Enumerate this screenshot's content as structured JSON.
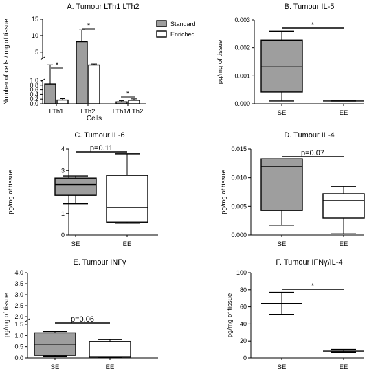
{
  "colors": {
    "standard": "#9e9e9e",
    "enriched": "#ffffff",
    "box_se": "#9e9e9e",
    "box_ee": "#ffffff",
    "ink": "#000000"
  },
  "chart_data": [
    {
      "id": "A",
      "type": "bar",
      "title": "A. Tumour LTh1 LTh2",
      "xlabel": "Cells",
      "ylabel": "Number of cells / mg of tissue",
      "categories": [
        "LTh1",
        "LTh2",
        "LTh1/LTh2"
      ],
      "series": [
        {
          "name": "Standard",
          "values": [
            0.85,
            8.2,
            0.08
          ],
          "errors": [
            0.3,
            3.6,
            0.05
          ]
        },
        {
          "name": "Enriched",
          "values": [
            0.16,
            1.1,
            0.15
          ],
          "errors": [
            0.06,
            0.3,
            0.06
          ]
        }
      ],
      "broken_axis": true,
      "ylim_lower": [
        0,
        1.0
      ],
      "ylim_upper": [
        1.0,
        15
      ],
      "yticks_lower": [
        "0.0",
        "0.2",
        "0.4",
        "0.6",
        "0.8",
        "1.0"
      ],
      "yticks_upper": [
        "5",
        "10",
        "15"
      ],
      "annotations": [
        "*",
        "*",
        "*"
      ],
      "legend_position": "top-right"
    },
    {
      "id": "B",
      "type": "box",
      "title": "B. Tumour IL-5",
      "ylabel": "pg/mg of tissue",
      "categories": [
        "SE",
        "EE"
      ],
      "ylim": [
        0,
        0.003
      ],
      "yticks": [
        "0.000",
        "0.001",
        "0.002",
        "0.003"
      ],
      "boxes": [
        {
          "min": 0.0001,
          "q1": 0.00042,
          "median": 0.00132,
          "q3": 0.00228,
          "max": 0.0026
        },
        {
          "min": 0.0001,
          "q1": 0.0001,
          "median": 0.0001,
          "q3": 0.0001,
          "max": 0.0001
        }
      ],
      "annotation": "*"
    },
    {
      "id": "C",
      "type": "box",
      "title": "C. Tumour IL-6",
      "ylabel": "pg/mg of tissue",
      "categories": [
        "SE",
        "EE"
      ],
      "ylim": [
        0,
        4
      ],
      "yticks": [
        "0",
        "1",
        "2",
        "3",
        "4"
      ],
      "boxes": [
        {
          "min": 1.45,
          "q1": 1.85,
          "median": 2.35,
          "q3": 2.65,
          "max": 2.75
        },
        {
          "min": 0.55,
          "q1": 0.6,
          "median": 1.28,
          "q3": 2.78,
          "max": 3.78
        }
      ],
      "annotation": "p=0.11"
    },
    {
      "id": "D",
      "type": "box",
      "title": "D. Tumour IL-4",
      "ylabel": "pg/mg of tissue",
      "categories": [
        "SE",
        "EE"
      ],
      "ylim": [
        0,
        0.015
      ],
      "yticks": [
        "0.000",
        "0.005",
        "0.010",
        "0.015"
      ],
      "boxes": [
        {
          "min": 0.0017,
          "q1": 0.0043,
          "median": 0.012,
          "q3": 0.0133,
          "max": 0.0133
        },
        {
          "min": 0.0002,
          "q1": 0.003,
          "median": 0.006,
          "q3": 0.0072,
          "max": 0.0085
        }
      ],
      "annotation": "p=0.07"
    },
    {
      "id": "E",
      "type": "box",
      "title": "E. Tumour INFγ",
      "ylabel": "pg/mg of tissue",
      "categories": [
        "SE",
        "EE"
      ],
      "broken_axis": true,
      "ylim_lower": [
        0,
        1.5
      ],
      "ylim_upper": [
        1.5,
        4.0
      ],
      "yticks_lower": [
        "0.0",
        "0.5",
        "1.0",
        "1.5"
      ],
      "yticks_upper": [
        "2.0",
        "2.5",
        "3.0",
        "3.5",
        "4.0"
      ],
      "boxes": [
        {
          "min": 0.08,
          "q1": 0.12,
          "median": 0.62,
          "q3": 1.12,
          "max": 1.18
        },
        {
          "min": 0.02,
          "q1": 0.04,
          "median": 0.06,
          "q3": 0.74,
          "max": 0.82
        }
      ],
      "annotation": "p=0.06"
    },
    {
      "id": "F",
      "type": "box",
      "title": "F. Tumour IFNγ/IL-4",
      "ylabel": "pg/mg of tissue",
      "categories": [
        "SE",
        "EE"
      ],
      "ylim": [
        0,
        100
      ],
      "yticks": [
        "0",
        "20",
        "40",
        "60",
        "80",
        "100"
      ],
      "boxes": [
        {
          "min": 51,
          "q1": 64,
          "median": 64,
          "q3": 64,
          "max": 77
        },
        {
          "min": 7,
          "q1": 8,
          "median": 8,
          "q3": 8,
          "max": 10
        }
      ],
      "annotation": "*"
    }
  ]
}
